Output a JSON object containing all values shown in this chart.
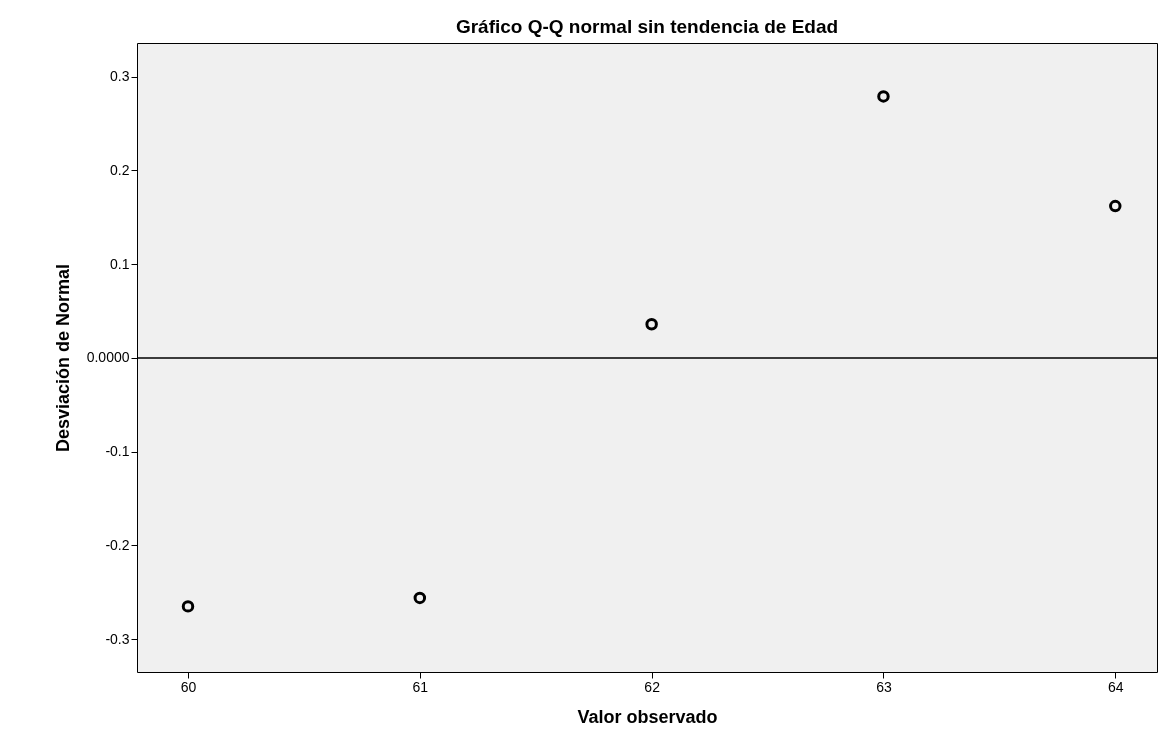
{
  "chart_data": {
    "type": "scatter",
    "title": "Gráfico Q-Q normal sin tendencia de Edad",
    "xlabel": "Valor observado",
    "ylabel": "Desviación de Normal",
    "x": [
      60,
      61,
      62,
      63,
      64
    ],
    "series": [
      {
        "color": "#000000",
        "values": [
          -0.265,
          -0.256,
          0.036,
          0.279,
          0.162
        ]
      }
    ],
    "xlim": [
      59.78,
      64.18
    ],
    "xticks": [
      60,
      61,
      62,
      63,
      64
    ],
    "ylim": [
      -0.335,
      0.336
    ],
    "yticks": [
      -0.3,
      -0.2,
      -0.1,
      {
        "value": 0,
        "label": "0.0000"
      },
      0.1,
      0.2,
      0.3
    ],
    "ref_lines": [
      {
        "axis": "y",
        "value": 0,
        "color": "#000000"
      }
    ],
    "marker": "circle",
    "grid": false,
    "legend": false
  }
}
